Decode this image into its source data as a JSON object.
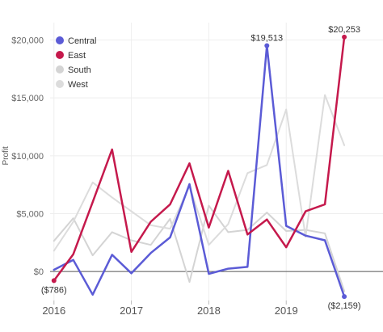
{
  "chart_data": {
    "type": "line",
    "title": "",
    "ylabel": "Profit",
    "xlabel": "",
    "ylim": [
      -2500,
      21500
    ],
    "yticks": [
      {
        "value": 0,
        "label": "$0"
      },
      {
        "value": 5000,
        "label": "$5,000"
      },
      {
        "value": 10000,
        "label": "$10,000"
      },
      {
        "value": 15000,
        "label": "$15,000"
      },
      {
        "value": 20000,
        "label": "$20,000"
      }
    ],
    "xticks": [
      {
        "value": 2016.0,
        "label": "2016"
      },
      {
        "value": 2017.0,
        "label": "2017"
      },
      {
        "value": 2018.0,
        "label": "2018"
      },
      {
        "value": 2019.0,
        "label": "2019"
      }
    ],
    "x": [
      2016.0,
      2016.25,
      2016.5,
      2016.75,
      2017.0,
      2017.25,
      2017.5,
      2017.75,
      2018.0,
      2018.25,
      2018.5,
      2018.75,
      2019.0,
      2019.25,
      2019.5,
      2019.75
    ],
    "grid": true,
    "legend_position": "top-left",
    "series": [
      {
        "name": "Central",
        "color": "#5b5bd6",
        "highlight": true,
        "values": [
          150,
          1000,
          -2000,
          1450,
          -150,
          1600,
          2950,
          7550,
          -200,
          250,
          400,
          19513,
          3950,
          3100,
          2700,
          -2159
        ]
      },
      {
        "name": "East",
        "color": "#c5194c",
        "highlight": true,
        "values": [
          -786,
          1500,
          6000,
          10550,
          1700,
          4300,
          5800,
          9350,
          3800,
          8700,
          3200,
          4500,
          2100,
          5200,
          5800,
          20253
        ]
      },
      {
        "name": "South",
        "color": "#d4d4d4",
        "highlight": false,
        "values": [
          2650,
          4600,
          1400,
          3400,
          2700,
          2300,
          4550,
          -900,
          5700,
          3400,
          3600,
          5100,
          3500,
          3600,
          3300,
          -1700
        ]
      },
      {
        "name": "West",
        "color": "#dcdcdc",
        "highlight": false,
        "values": [
          1800,
          4300,
          7700,
          6400,
          5200,
          4000,
          3700,
          7400,
          2300,
          4100,
          8500,
          9200,
          14000,
          3000,
          15250,
          10900
        ]
      }
    ],
    "annotations": [
      {
        "series": "East",
        "index": 0,
        "label": "($786)",
        "position": "below"
      },
      {
        "series": "Central",
        "index": 11,
        "label": "$19,513",
        "position": "above"
      },
      {
        "series": "East",
        "index": 15,
        "label": "$20,253",
        "position": "above"
      },
      {
        "series": "Central",
        "index": 15,
        "label": "($2,159)",
        "position": "below"
      }
    ]
  }
}
